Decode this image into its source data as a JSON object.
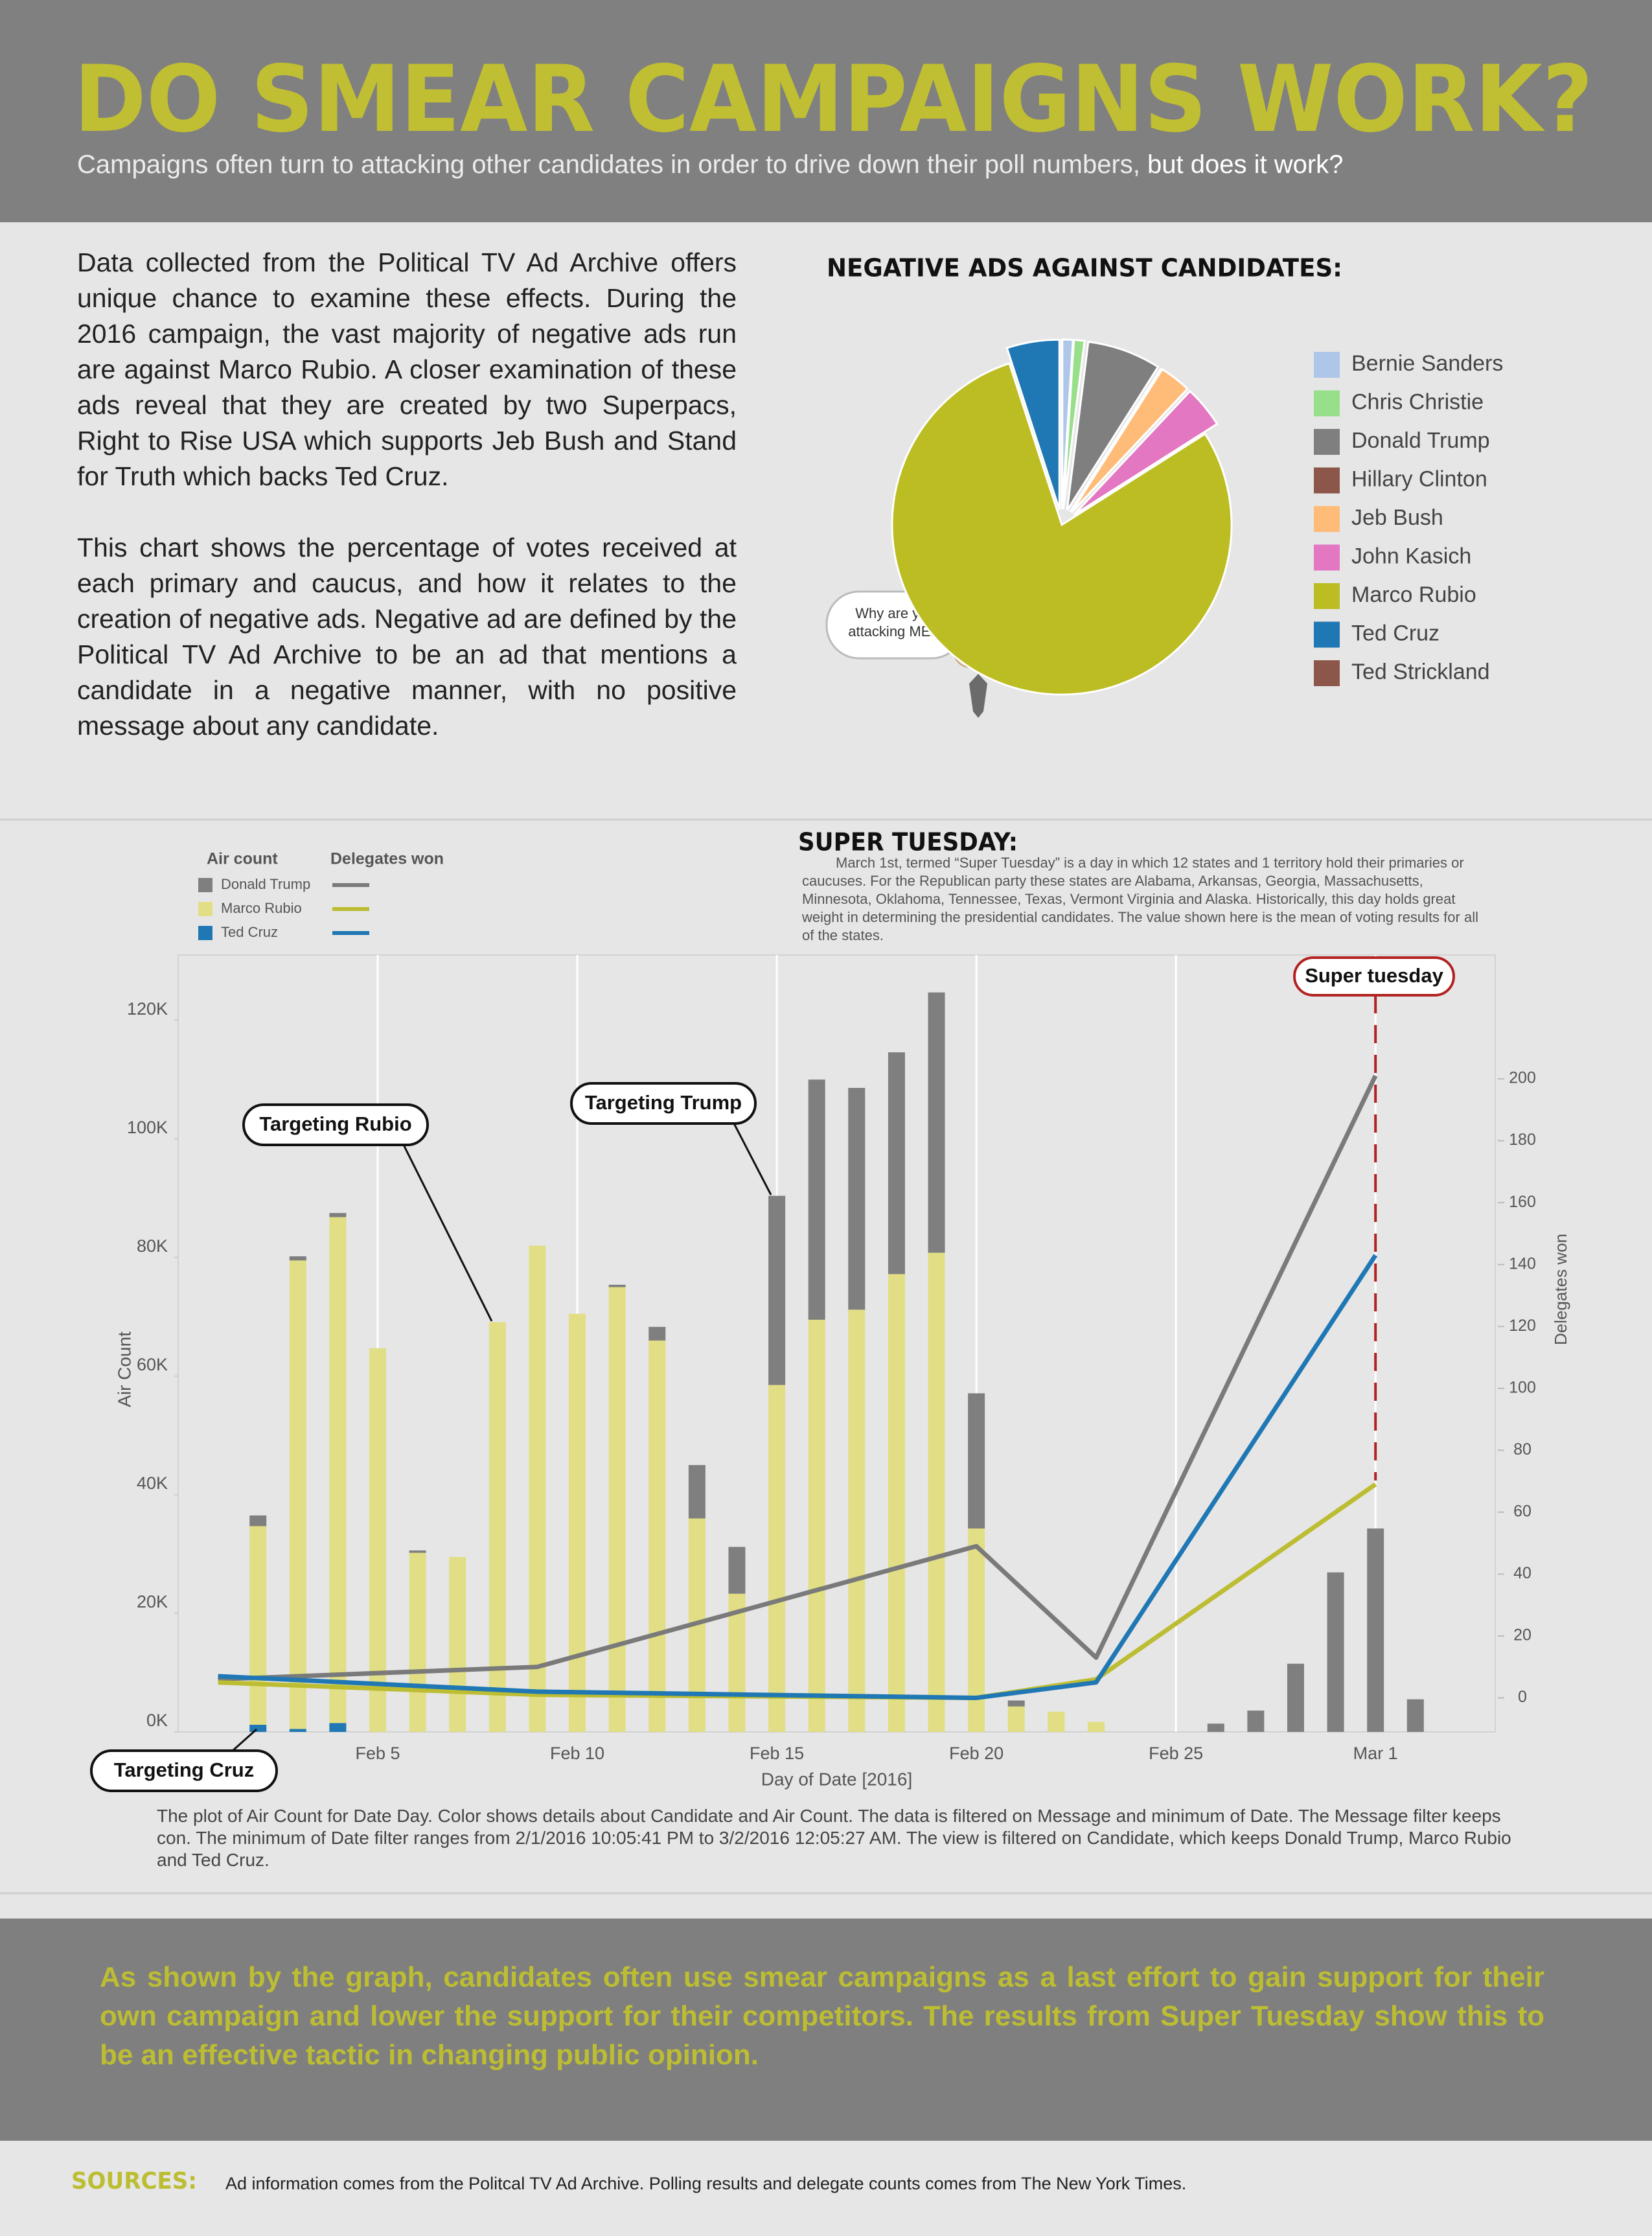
{
  "header": {
    "title": "DO SMEAR CAMPAIGNS WORK?",
    "subtitle": "Campaigns often turn to attacking other candidates in order to drive down their poll numbers,",
    "subtitle_emphasis": "but does it work?"
  },
  "intro": [
    "Data collected from the Political TV Ad Archive offers unique chance to examine these effects. During the 2016 campaign, the vast majority of negative ads run are against Marco Rubio. A closer examination of these ads reveal that they are created by two Superpacs, Right to Rise USA which supports Jeb Bush and Stand for Truth which backs Ted Cruz.",
    "This chart shows the percentage of votes received at each primary and caucus, and how it relates to the creation of negative ads. Negative ad are defined by the Political TV Ad Archive to be an ad that mentions a candidate in a negative manner, with no positive message about any candidate."
  ],
  "chart_data": [
    {
      "type": "pie",
      "title": "NEGATIVE ADS AGAINST CANDIDATES:",
      "categories": [
        "Bernie Sanders",
        "Chris Christie",
        "Donald Trump",
        "Hillary Clinton",
        "Jeb Bush",
        "John Kasich",
        "Marco Rubio",
        "Ted Cruz",
        "Ted Strickland"
      ],
      "values": [
        1,
        1,
        7,
        0,
        3,
        4,
        79,
        5,
        0
      ],
      "colors": [
        "#aec7e8",
        "#98df8a",
        "#7f7f7f",
        "#8c564b",
        "#ffbb78",
        "#e377c2",
        "#bcbd22",
        "#1f77b4",
        "#8c564b"
      ],
      "annotation": [
        "Why are you",
        "attacking ME!?"
      ]
    },
    {
      "type": "combo",
      "xlabel": "Day of Date [2016]",
      "ylabel": "Air Count",
      "y2label": "Delegates won",
      "legend_titles": [
        "Air count",
        "Delegates won"
      ],
      "x": [
        "2016-02-02",
        "2016-02-03",
        "2016-02-04",
        "2016-02-05",
        "2016-02-06",
        "2016-02-07",
        "2016-02-08",
        "2016-02-09",
        "2016-02-10",
        "2016-02-11",
        "2016-02-12",
        "2016-02-13",
        "2016-02-14",
        "2016-02-15",
        "2016-02-16",
        "2016-02-17",
        "2016-02-18",
        "2016-02-19",
        "2016-02-20",
        "2016-02-21",
        "2016-02-22",
        "2016-02-23",
        "2016-02-26",
        "2016-02-27",
        "2016-02-28",
        "2016-02-29",
        "2016-03-01",
        "2016-03-02"
      ],
      "delegates_x": [
        "2016-02-01",
        "2016-02-09",
        "2016-02-20",
        "2016-02-23",
        "2016-03-01"
      ],
      "series": [
        {
          "name": "Donald Trump",
          "color": "#7f7f7f",
          "line_color": "#7a7a7a",
          "values": [
            1800,
            700,
            700,
            null,
            400,
            null,
            null,
            null,
            null,
            400,
            2300,
            9000,
            7900,
            31900,
            40500,
            37400,
            37400,
            43900,
            22800,
            1000,
            null,
            null,
            1400,
            3600,
            11500,
            26900,
            34300,
            5500
          ],
          "delegates": [
            6,
            10,
            49,
            13,
            201
          ]
        },
        {
          "name": "Marco Rubio",
          "color": "#e1de85",
          "line_color": "#bcbd32",
          "values": [
            33500,
            79000,
            85300,
            64700,
            30200,
            29500,
            69100,
            82000,
            70500,
            75000,
            66000,
            36000,
            23300,
            58500,
            69500,
            71200,
            77200,
            80800,
            34300,
            4300,
            3400,
            1700,
            null,
            null,
            null,
            null,
            null,
            null
          ],
          "delegates": [
            5,
            1,
            0,
            6,
            69
          ]
        },
        {
          "name": "Ted Cruz",
          "color": "#1f77b4",
          "line_color": "#1f77b4",
          "values": [
            1200,
            500,
            1500,
            null,
            null,
            null,
            null,
            null,
            null,
            null,
            null,
            null,
            null,
            null,
            null,
            null,
            null,
            null,
            null,
            null,
            null,
            null,
            null,
            null,
            null,
            null,
            null,
            null
          ],
          "delegates": [
            7,
            2,
            0,
            5,
            143
          ]
        }
      ],
      "xlim": [
        "2016-01-31",
        "2016-03-04"
      ],
      "xticks": [
        {
          "value": "2016-02-05",
          "label": "Feb 5"
        },
        {
          "value": "2016-02-10",
          "label": "Feb 10"
        },
        {
          "value": "2016-02-15",
          "label": "Feb 15"
        },
        {
          "value": "2016-02-20",
          "label": "Feb 20"
        },
        {
          "value": "2016-02-25",
          "label": "Feb 25"
        },
        {
          "value": "2016-03-01",
          "label": "Mar 1"
        }
      ],
      "ylim": [
        0,
        131000
      ],
      "yticks": [
        {
          "value": 0,
          "label": "0K"
        },
        {
          "value": 20000,
          "label": "20K"
        },
        {
          "value": 40000,
          "label": "40K"
        },
        {
          "value": 60000,
          "label": "60K"
        },
        {
          "value": 80000,
          "label": "80K"
        },
        {
          "value": 100000,
          "label": "100K"
        },
        {
          "value": 120000,
          "label": "120K"
        }
      ],
      "y2lim": [
        -11,
        240
      ],
      "y2ticks": [
        0,
        20,
        40,
        60,
        80,
        100,
        120,
        140,
        160,
        180,
        200
      ],
      "grid": "x",
      "annotations": [
        "Targeting Rubio",
        "Targeting Trump",
        "Targeting Cruz",
        "Super tuesday"
      ]
    }
  ],
  "super_tuesday": {
    "title": "SUPER TUESDAY:",
    "text": "March 1st, termed “Super Tuesday” is a day in which 12 states and 1 territory hold their primaries or caucuses. For the Republican party these states are Alabama, Arkansas, Georgia, Massachusetts, Minnesota, Oklahoma, Tennessee, Texas, Vermont Virginia and Alaska. Historically, this day holds great weight in determining the presidential candidates. The value shown here is the mean of voting results for all of the states."
  },
  "caption": "The plot of Air Count for Date Day.  Color shows details about Candidate and Air Count. The data is filtered on Message and minimum of Date. The Message filter keeps con. The minimum of Date filter ranges from 2/1/2016 10:05:41 PM to 3/2/2016 12:05:27 AM. The view is filtered on Candidate, which keeps Donald Trump, Marco Rubio and Ted Cruz.",
  "conclusion": "As shown by the graph, candidates often use smear campaigns as a last effort to gain support for their own campaign and lower the support for their competitors. The results from Super Tuesday show this to be an effective tactic in changing public opinion.",
  "sources": {
    "label": "SOURCES:",
    "text": "Ad information comes from the Politcal TV Ad Archive. Polling results and delegate counts comes from The New York Times."
  }
}
